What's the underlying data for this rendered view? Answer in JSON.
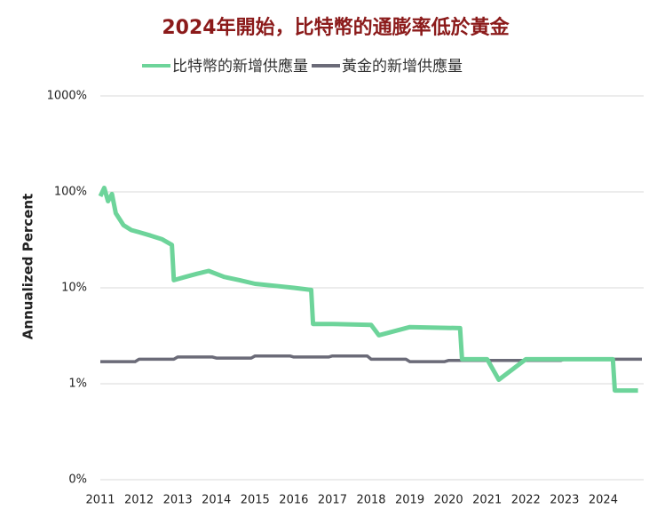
{
  "chart_data": {
    "type": "line",
    "title": "2024年開始，比特幣的通膨率低於黃金",
    "y_label": "Annualized Percent",
    "log_y": true,
    "grid": true,
    "legend": "top",
    "xlim": [
      2011,
      2025
    ],
    "xticks": [
      2011,
      2012,
      2013,
      2014,
      2015,
      2016,
      2017,
      2018,
      2019,
      2020,
      2021,
      2022,
      2023,
      2024
    ],
    "ylim": [
      0.1,
      1000
    ],
    "yticks": [
      {
        "value": 0.1,
        "label": "0%"
      },
      {
        "value": 1,
        "label": "1%"
      },
      {
        "value": 10,
        "label": "10%"
      },
      {
        "value": 100,
        "label": "100%"
      },
      {
        "value": 1000,
        "label": "1000%"
      }
    ],
    "series": [
      {
        "name": "比特幣的新增供應量",
        "color": "#6dd49a",
        "x": [
          2011.0,
          2011.1,
          2011.2,
          2011.3,
          2011.4,
          2011.6,
          2011.8,
          2012.0,
          2012.3,
          2012.6,
          2012.85,
          2012.9,
          2013.2,
          2013.5,
          2013.8,
          2014.2,
          2014.6,
          2015.0,
          2015.5,
          2016.0,
          2016.45,
          2016.5,
          2017.0,
          2018.0,
          2018.2,
          2019.0,
          2020.3,
          2020.35,
          2021.0,
          2021.3,
          2022.0,
          2023.0,
          2024.25,
          2024.3,
          2024.9
        ],
        "values": [
          90,
          110,
          80,
          95,
          60,
          45,
          40,
          38,
          35,
          32,
          28,
          12,
          13,
          14,
          15,
          13,
          12,
          11,
          10.5,
          10,
          9.5,
          4.2,
          4.2,
          4.1,
          3.2,
          3.9,
          3.8,
          1.8,
          1.8,
          1.1,
          1.8,
          1.8,
          1.8,
          0.85,
          0.85
        ]
      },
      {
        "name": "黃金的新增供應量",
        "color": "#6b6b78",
        "x": [
          2011.0,
          2011.9,
          2012.0,
          2012.9,
          2013.0,
          2013.9,
          2014.0,
          2014.9,
          2015.0,
          2015.9,
          2016.0,
          2016.9,
          2017.0,
          2017.9,
          2018.0,
          2018.9,
          2019.0,
          2019.9,
          2020.0,
          2022.9,
          2023.0,
          2025.0
        ],
        "values": [
          1.7,
          1.7,
          1.8,
          1.8,
          1.9,
          1.9,
          1.85,
          1.85,
          1.95,
          1.95,
          1.9,
          1.9,
          1.95,
          1.95,
          1.8,
          1.8,
          1.7,
          1.7,
          1.75,
          1.75,
          1.8,
          1.8
        ]
      }
    ]
  }
}
